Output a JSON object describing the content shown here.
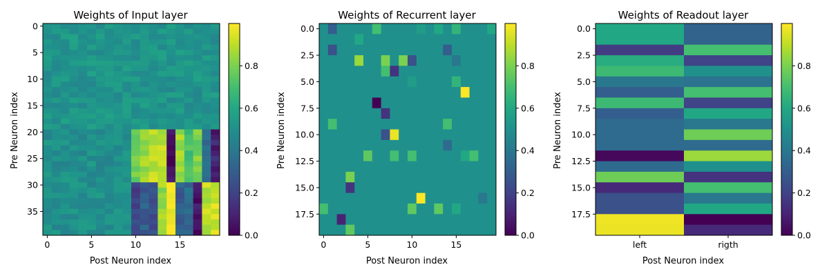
{
  "chart_data": [
    {
      "type": "heatmap",
      "title": "Weights of Input layer",
      "xlabel": "Post Neuron index",
      "ylabel": "Pre Neuron index",
      "rows": 40,
      "cols": 20,
      "xticks": [
        "0",
        "5",
        "10",
        "15"
      ],
      "xtick_values": [
        0,
        5,
        10,
        15
      ],
      "yticks": [
        "0",
        "5",
        "10",
        "15",
        "20",
        "25",
        "30",
        "35"
      ],
      "ytick_values": [
        0,
        5,
        10,
        15,
        20,
        25,
        30,
        35
      ],
      "colormap": "viridis",
      "vmin": 0,
      "vmax": 1,
      "colorbar_ticks": [
        "0.0",
        "0.2",
        "0.4",
        "0.6",
        "0.8"
      ],
      "colorbar_tick_values": [
        0,
        0.2,
        0.4,
        0.6,
        0.8
      ],
      "blocks": [
        {
          "rows": [
            0,
            19
          ],
          "cols": [
            0,
            9
          ],
          "value": 0.52,
          "note_values": "mixed 0.45-0.62"
        },
        {
          "rows": [
            0,
            19
          ],
          "cols": [
            10,
            19
          ],
          "value": 0.52
        },
        {
          "rows": [
            20,
            39
          ],
          "cols": [
            0,
            9
          ],
          "value": 0.5
        },
        {
          "rows": [
            20,
            29
          ],
          "cols": [
            10,
            19
          ],
          "pattern_by_col": [
            0.78,
            0.85,
            0.9,
            0.9,
            0.05,
            0.85,
            0.7,
            0.8,
            0.35,
            0.1
          ]
        },
        {
          "rows": [
            30,
            39
          ],
          "cols": [
            10,
            19
          ],
          "pattern_by_col": [
            0.2,
            0.3,
            0.25,
            0.85,
            1.0,
            0.3,
            0.35,
            0.05,
            0.9,
            0.92
          ]
        }
      ]
    },
    {
      "type": "heatmap",
      "title": "Weights of Recurrent layer",
      "xlabel": "Post Neuron index",
      "ylabel": "Pre Neuron index",
      "rows": 20,
      "cols": 20,
      "background_value": 0.5,
      "xticks": [
        "0",
        "5",
        "10",
        "15"
      ],
      "xtick_values": [
        0,
        5,
        10,
        15
      ],
      "yticks": [
        "0.0",
        "2.5",
        "5.0",
        "7.5",
        "10.0",
        "12.5",
        "15.0",
        "17.5"
      ],
      "ytick_values": [
        0,
        2.5,
        5,
        7.5,
        10,
        12.5,
        15,
        17.5
      ],
      "colormap": "viridis",
      "vmin": 0,
      "vmax": 1,
      "colorbar_ticks": [
        "0.0",
        "0.2",
        "0.4",
        "0.6",
        "0.8"
      ],
      "colorbar_tick_values": [
        0,
        0.2,
        0.4,
        0.6,
        0.8
      ],
      "cells": [
        {
          "r": 0,
          "c": 1,
          "v": 0.3
        },
        {
          "r": 0,
          "c": 6,
          "v": 0.7
        },
        {
          "r": 0,
          "c": 11,
          "v": 0.55
        },
        {
          "r": 0,
          "c": 13,
          "v": 0.6
        },
        {
          "r": 0,
          "c": 15,
          "v": 0.65
        },
        {
          "r": 0,
          "c": 19,
          "v": 0.6
        },
        {
          "r": 1,
          "c": 4,
          "v": 0.6
        },
        {
          "r": 2,
          "c": 1,
          "v": 0.25
        },
        {
          "r": 2,
          "c": 14,
          "v": 0.3
        },
        {
          "r": 3,
          "c": 4,
          "v": 0.85
        },
        {
          "r": 3,
          "c": 7,
          "v": 0.8
        },
        {
          "r": 3,
          "c": 9,
          "v": 0.8
        },
        {
          "r": 3,
          "c": 10,
          "v": 0.25
        },
        {
          "r": 3,
          "c": 15,
          "v": 0.4
        },
        {
          "r": 4,
          "c": 7,
          "v": 0.7
        },
        {
          "r": 4,
          "c": 8,
          "v": 0.15
        },
        {
          "r": 5,
          "c": 10,
          "v": 0.55
        },
        {
          "r": 5,
          "c": 15,
          "v": 0.65
        },
        {
          "r": 6,
          "c": 16,
          "v": 1.0
        },
        {
          "r": 7,
          "c": 6,
          "v": 0.0
        },
        {
          "r": 8,
          "c": 7,
          "v": 0.15
        },
        {
          "r": 9,
          "c": 1,
          "v": 0.7
        },
        {
          "r": 9,
          "c": 14,
          "v": 0.7
        },
        {
          "r": 10,
          "c": 7,
          "v": 0.25
        },
        {
          "r": 10,
          "c": 8,
          "v": 0.97
        },
        {
          "r": 11,
          "c": 14,
          "v": 0.35
        },
        {
          "r": 12,
          "c": 5,
          "v": 0.75
        },
        {
          "r": 12,
          "c": 8,
          "v": 0.7
        },
        {
          "r": 12,
          "c": 10,
          "v": 0.7
        },
        {
          "r": 12,
          "c": 16,
          "v": 0.6
        },
        {
          "r": 12,
          "c": 17,
          "v": 0.7
        },
        {
          "r": 14,
          "c": 3,
          "v": 0.8
        },
        {
          "r": 15,
          "c": 3,
          "v": 0.15
        },
        {
          "r": 16,
          "c": 11,
          "v": 1.0
        },
        {
          "r": 16,
          "c": 18,
          "v": 0.4
        },
        {
          "r": 17,
          "c": 0,
          "v": 0.7
        },
        {
          "r": 17,
          "c": 10,
          "v": 0.75
        },
        {
          "r": 17,
          "c": 13,
          "v": 0.75
        },
        {
          "r": 17,
          "c": 15,
          "v": 0.6
        },
        {
          "r": 18,
          "c": 2,
          "v": 0.1
        },
        {
          "r": 19,
          "c": 3,
          "v": 0.75
        }
      ]
    },
    {
      "type": "heatmap",
      "title": "Weights of Readout layer",
      "xlabel": "Post Neuron index",
      "ylabel": "Pre Neuron index",
      "rows": 20,
      "cols": 2,
      "xticks": [
        "left",
        "rigth"
      ],
      "xtick_values": [
        0,
        1
      ],
      "yticks": [
        "0.0",
        "2.5",
        "5.0",
        "7.5",
        "10.0",
        "12.5",
        "15.0",
        "17.5"
      ],
      "ytick_values": [
        0,
        2.5,
        5,
        7.5,
        10,
        12.5,
        15,
        17.5
      ],
      "colormap": "viridis",
      "vmin": 0,
      "vmax": 1,
      "colorbar_ticks": [
        "0.0",
        "0.2",
        "0.4",
        "0.6",
        "0.8"
      ],
      "colorbar_tick_values": [
        0,
        0.2,
        0.4,
        0.6,
        0.8
      ],
      "values": [
        [
          0.6,
          0.32
        ],
        [
          0.6,
          0.32
        ],
        [
          0.18,
          0.7
        ],
        [
          0.62,
          0.2
        ],
        [
          0.68,
          0.5
        ],
        [
          0.4,
          0.38
        ],
        [
          0.3,
          0.7
        ],
        [
          0.68,
          0.2
        ],
        [
          0.3,
          0.6
        ],
        [
          0.35,
          0.4
        ],
        [
          0.35,
          0.78
        ],
        [
          0.35,
          0.35
        ],
        [
          0.02,
          0.85
        ],
        [
          0.35,
          0.5
        ],
        [
          0.78,
          0.15
        ],
        [
          0.12,
          0.7
        ],
        [
          0.25,
          0.4
        ],
        [
          0.25,
          0.6
        ],
        [
          0.98,
          0.0
        ],
        [
          0.97,
          0.12
        ]
      ]
    }
  ]
}
